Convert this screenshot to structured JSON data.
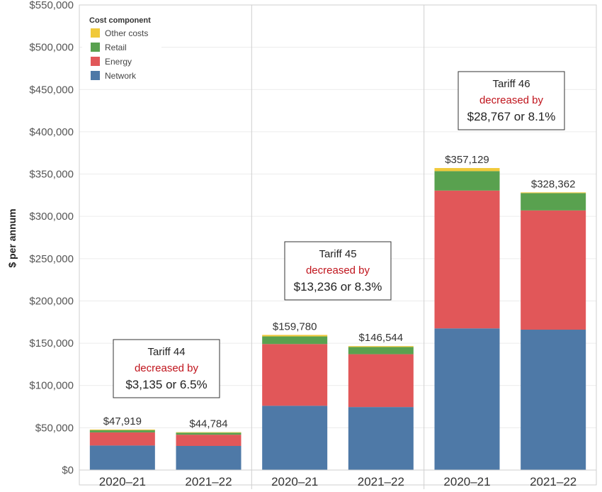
{
  "chart_data": {
    "type": "bar",
    "stacked": true,
    "ylabel": "$ per annum",
    "ylim": [
      0,
      550000
    ],
    "yticks": [
      {
        "value": 0,
        "label": "$0"
      },
      {
        "value": 50000,
        "label": "$50,000"
      },
      {
        "value": 100000,
        "label": "$100,000"
      },
      {
        "value": 150000,
        "label": "$150,000"
      },
      {
        "value": 200000,
        "label": "$200,000"
      },
      {
        "value": 250000,
        "label": "$250,000"
      },
      {
        "value": 300000,
        "label": "$300,000"
      },
      {
        "value": 350000,
        "label": "$350,000"
      },
      {
        "value": 400000,
        "label": "$400,000"
      },
      {
        "value": 450000,
        "label": "$450,000"
      },
      {
        "value": 500000,
        "label": "$500,000"
      },
      {
        "value": 550000,
        "label": "$550,000"
      }
    ],
    "grid": true,
    "legend": {
      "title": "Cost component",
      "position": "top-left",
      "items": [
        {
          "name": "Other costs",
          "color": "#f0c93a"
        },
        {
          "name": "Retail",
          "color": "#59a14f"
        },
        {
          "name": "Energy",
          "color": "#e15759"
        },
        {
          "name": "Network",
          "color": "#4e79a7"
        }
      ]
    },
    "panels": [
      {
        "annotation": {
          "line1": "Tariff 44",
          "line2": "decreased by",
          "line3": "$3,135 or 6.5%"
        },
        "categories": [
          "2020–21",
          "2021–22"
        ],
        "totals": [
          "$47,919",
          "$44,784"
        ],
        "series": [
          {
            "name": "Network",
            "values": [
              29000,
              28500
            ]
          },
          {
            "name": "Energy",
            "values": [
              15500,
              13300
            ]
          },
          {
            "name": "Retail",
            "values": [
              2700,
              2400
            ]
          },
          {
            "name": "Other costs",
            "values": [
              719,
              584
            ]
          }
        ]
      },
      {
        "annotation": {
          "line1": "Tariff 45",
          "line2": "decreased by",
          "line3": "$13,236 or 8.3%"
        },
        "categories": [
          "2020–21",
          "2021–22"
        ],
        "totals": [
          "$159,780",
          "$146,544"
        ],
        "series": [
          {
            "name": "Network",
            "values": [
              76000,
              74500
            ]
          },
          {
            "name": "Energy",
            "values": [
              73000,
              62500
            ]
          },
          {
            "name": "Retail",
            "values": [
              9000,
              8500
            ]
          },
          {
            "name": "Other costs",
            "values": [
              1780,
              1044
            ]
          }
        ]
      },
      {
        "annotation": {
          "line1": "Tariff 46",
          "line2": "decreased by",
          "line3": "$28,767 or 8.1%"
        },
        "categories": [
          "2020–21",
          "2021–22"
        ],
        "totals": [
          "$357,129",
          "$328,362"
        ],
        "series": [
          {
            "name": "Network",
            "values": [
              167500,
              166000
            ]
          },
          {
            "name": "Energy",
            "values": [
              163000,
              141000
            ]
          },
          {
            "name": "Retail",
            "values": [
              23000,
              20500
            ]
          },
          {
            "name": "Other costs",
            "values": [
              3629,
              862
            ]
          }
        ]
      }
    ]
  }
}
